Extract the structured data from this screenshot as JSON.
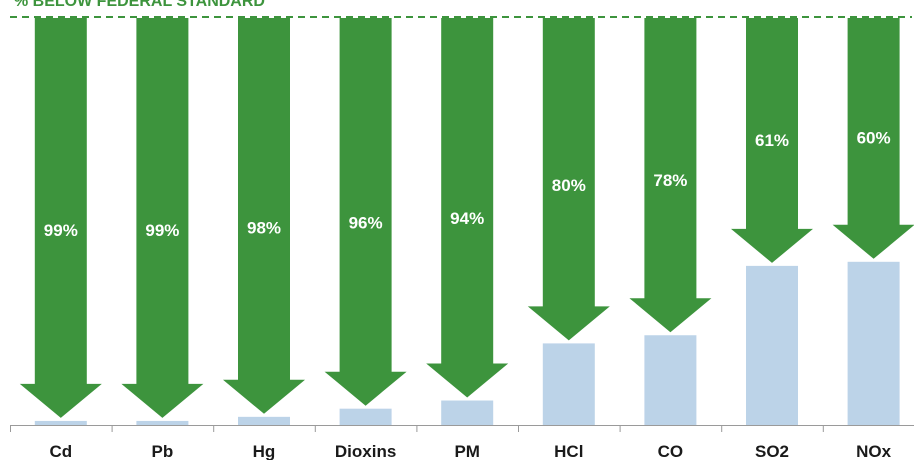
{
  "standard_label": "% BELOW FEDERAL STANDARD",
  "colors": {
    "arrow": "#3d943d",
    "bar": "#bcd3e8",
    "standard_line": "#3d943d",
    "axis": "#9a9a9a",
    "label_on_arrow": "#ffffff",
    "category_label": "#1a1a1a"
  },
  "chart_data": {
    "type": "bar",
    "title": "",
    "standard_label": "% BELOW FEDERAL STANDARD",
    "categories": [
      "Cd",
      "Pb",
      "Hg",
      "Dioxins",
      "PM",
      "HCl",
      "CO",
      "SO2",
      "NOx"
    ],
    "values": [
      1,
      1,
      2,
      4,
      6,
      20,
      22,
      39,
      40
    ],
    "percent_below_labels": [
      "99%",
      "99%",
      "98%",
      "96%",
      "94%",
      "80%",
      "78%",
      "61%",
      "60%"
    ],
    "ylim": [
      0,
      100
    ],
    "grid": false,
    "legend": "none"
  }
}
